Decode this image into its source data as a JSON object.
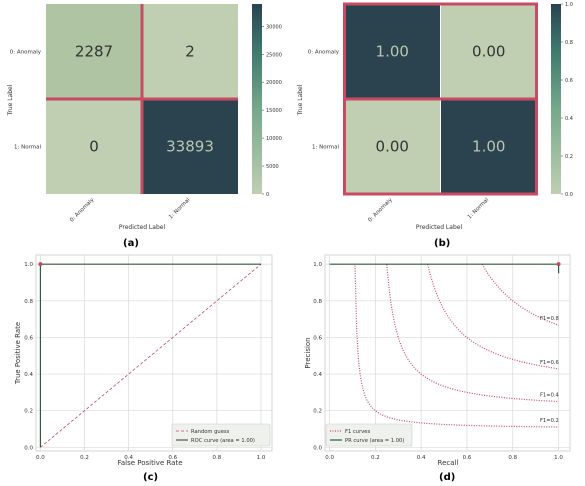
{
  "colors": {
    "dark": "#2a434f",
    "light": "#c0cfb2",
    "mid_light": "#aec4a2",
    "highlight": "#c94a63",
    "pink": "#c04b66",
    "grid_bg": "#ffffff",
    "grid_line": "#d9d9d9",
    "axis_text": "#333333",
    "pr_line": "#2f5a3f",
    "roc_line": "#555555"
  },
  "panel_labels": [
    "(a)",
    "(b)",
    "(c)",
    "(d)"
  ],
  "chart_data": [
    {
      "type": "heatmap",
      "panel": "(a)",
      "rows": [
        "0: Anomaly",
        "1: Normal"
      ],
      "cols": [
        "0: Anomaly",
        "1: Normal"
      ],
      "values": [
        [
          2287,
          2
        ],
        [
          0,
          33893
        ]
      ],
      "cell_text": [
        [
          "2287",
          "2"
        ],
        [
          "0",
          "33893"
        ]
      ],
      "xlabel": "Predicted Label",
      "ylabel": "True Label",
      "colorbar": {
        "min": 0,
        "max": 34000,
        "ticks": [
          0,
          5000,
          10000,
          15000,
          20000,
          25000,
          30000
        ],
        "tick_labels": [
          "0",
          "5000",
          "10000",
          "15000",
          "20000",
          "25000",
          "30000"
        ]
      }
    },
    {
      "type": "heatmap",
      "panel": "(b)",
      "rows": [
        "0: Anomaly",
        "1: Normal"
      ],
      "cols": [
        "0: Anomaly",
        "1: Normal"
      ],
      "values": [
        [
          1.0,
          0.0
        ],
        [
          0.0,
          1.0
        ]
      ],
      "cell_text": [
        [
          "1.00",
          "0.00"
        ],
        [
          "0.00",
          "1.00"
        ]
      ],
      "xlabel": "Predicted Label",
      "ylabel": "True Label",
      "colorbar": {
        "min": 0,
        "max": 1,
        "ticks": [
          0,
          0.2,
          0.4,
          0.6,
          0.8,
          1.0
        ],
        "tick_labels": [
          "0.0",
          "0.2",
          "0.4",
          "0.6",
          "0.8",
          "1.0"
        ]
      }
    },
    {
      "type": "line",
      "panel": "(c)",
      "xlabel": "False Positive Rate",
      "ylabel": "True Positive Rate",
      "xlim": [
        -0.02,
        1.05
      ],
      "ylim": [
        -0.02,
        1.05
      ],
      "xticks": [
        0,
        0.2,
        0.4,
        0.6,
        0.8,
        1.0
      ],
      "xtick_labels": [
        "0.0",
        "0.2",
        "0.4",
        "0.6",
        "0.8",
        "1.0"
      ],
      "yticks": [
        0,
        0.2,
        0.4,
        0.6,
        0.8,
        1.0
      ],
      "ytick_labels": [
        "0.0",
        "0.2",
        "0.4",
        "0.6",
        "0.8",
        "1.0"
      ],
      "grid": true,
      "legend_position": "bottom-right",
      "series": [
        {
          "name": "Random guess",
          "style": "dashed",
          "x": [
            0,
            1
          ],
          "y": [
            0,
            1
          ]
        },
        {
          "name": "ROC curve (area = 1.00)",
          "style": "solid",
          "x": [
            0,
            0,
            1
          ],
          "y": [
            0,
            1,
            1
          ]
        }
      ],
      "markers": [
        {
          "x": 0,
          "y": 1
        }
      ]
    },
    {
      "type": "line",
      "panel": "(d)",
      "xlabel": "Recall",
      "ylabel": "Precision",
      "xlim": [
        -0.02,
        1.05
      ],
      "ylim": [
        -0.02,
        1.05
      ],
      "xticks": [
        0,
        0.2,
        0.4,
        0.6,
        0.8,
        1.0
      ],
      "xtick_labels": [
        "0.0",
        "0.2",
        "0.4",
        "0.6",
        "0.8",
        "1.0"
      ],
      "yticks": [
        0,
        0.2,
        0.4,
        0.6,
        0.8,
        1.0
      ],
      "ytick_labels": [
        "0.0",
        "0.2",
        "0.4",
        "0.6",
        "0.8",
        "1.0"
      ],
      "grid": true,
      "legend_position": "bottom-left",
      "f1_levels": [
        0.2,
        0.4,
        0.6,
        0.8
      ],
      "f1_labels": [
        "F1=0.2",
        "F1=0.4",
        "F1=0.6",
        "F1=0.8"
      ],
      "series": [
        {
          "name": "F1 curves",
          "style": "dotted"
        },
        {
          "name": "PR curve (area = 1.00)",
          "style": "solid",
          "x": [
            0,
            1,
            1
          ],
          "y": [
            1,
            1,
            0.95
          ]
        }
      ],
      "markers": [
        {
          "x": 1,
          "y": 1
        }
      ]
    }
  ]
}
